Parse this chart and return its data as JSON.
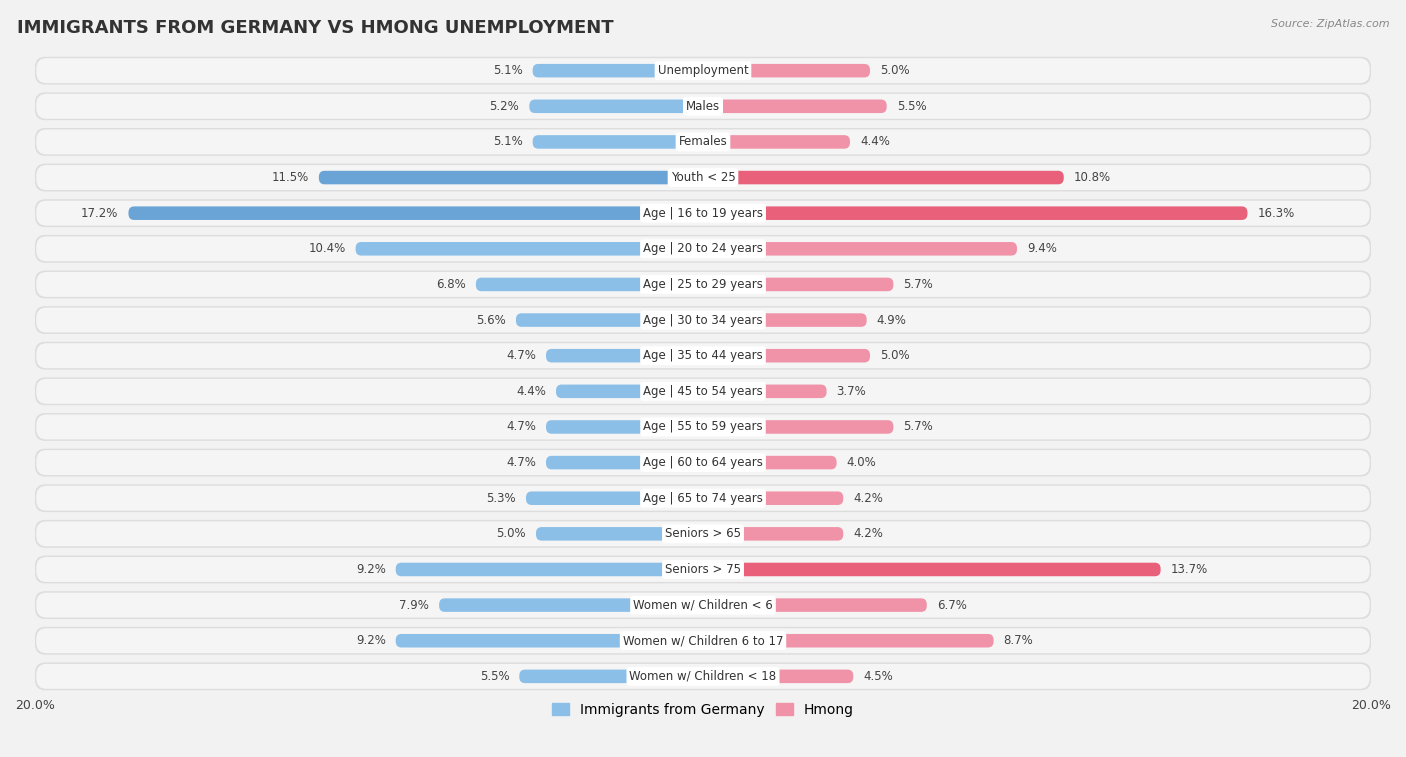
{
  "title": "IMMIGRANTS FROM GERMANY VS HMONG UNEMPLOYMENT",
  "source": "Source: ZipAtlas.com",
  "categories": [
    "Unemployment",
    "Males",
    "Females",
    "Youth < 25",
    "Age | 16 to 19 years",
    "Age | 20 to 24 years",
    "Age | 25 to 29 years",
    "Age | 30 to 34 years",
    "Age | 35 to 44 years",
    "Age | 45 to 54 years",
    "Age | 55 to 59 years",
    "Age | 60 to 64 years",
    "Age | 65 to 74 years",
    "Seniors > 65",
    "Seniors > 75",
    "Women w/ Children < 6",
    "Women w/ Children 6 to 17",
    "Women w/ Children < 18"
  ],
  "germany_values": [
    5.1,
    5.2,
    5.1,
    11.5,
    17.2,
    10.4,
    6.8,
    5.6,
    4.7,
    4.4,
    4.7,
    4.7,
    5.3,
    5.0,
    9.2,
    7.9,
    9.2,
    5.5
  ],
  "hmong_values": [
    5.0,
    5.5,
    4.4,
    10.8,
    16.3,
    9.4,
    5.7,
    4.9,
    5.0,
    3.7,
    5.7,
    4.0,
    4.2,
    4.2,
    13.7,
    6.7,
    8.7,
    4.5
  ],
  "germany_color": "#8BBFE8",
  "hmong_color": "#F093A8",
  "germany_highlight_color": "#6AA3D5",
  "hmong_highlight_color": "#E8607A",
  "xlim": 20.0,
  "background_color": "#f2f2f2",
  "row_bg_color": "#e8e8e8",
  "row_inner_color": "#f8f8f8",
  "title_fontsize": 13,
  "label_fontsize": 8.5,
  "value_fontsize": 8.5
}
